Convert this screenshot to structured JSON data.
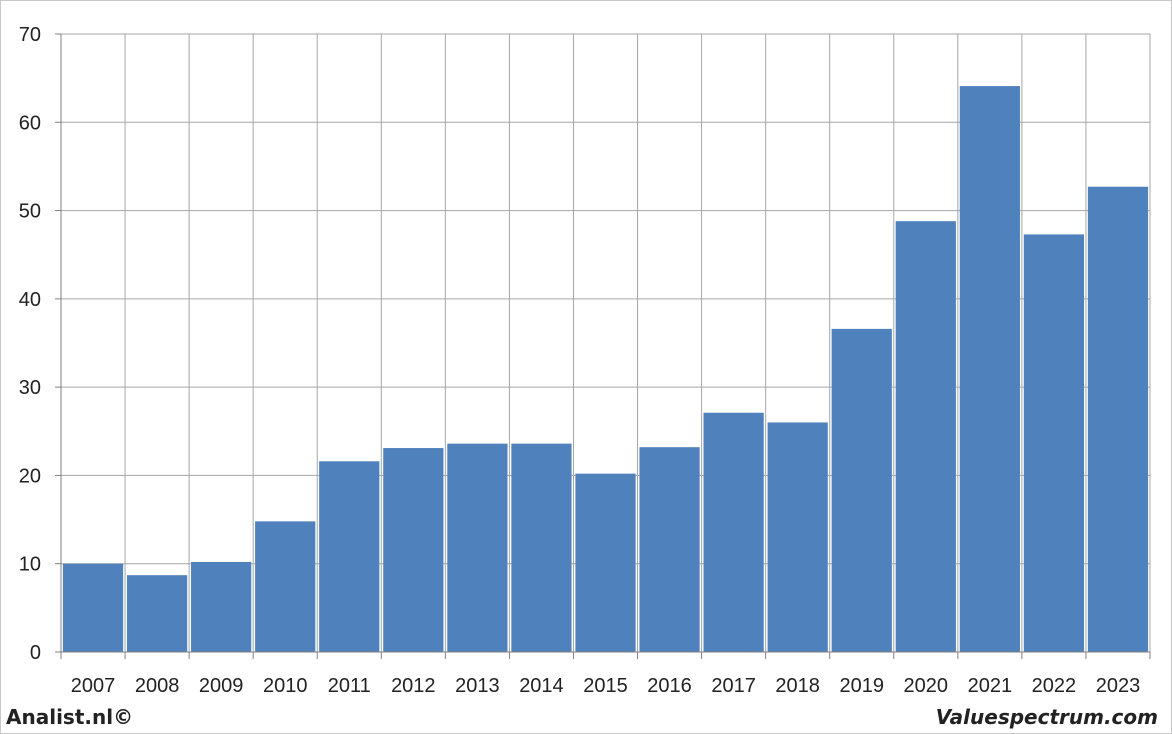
{
  "chart_data": {
    "type": "bar",
    "categories": [
      "2007",
      "2008",
      "2009",
      "2010",
      "2011",
      "2012",
      "2013",
      "2014",
      "2015",
      "2016",
      "2017",
      "2018",
      "2019",
      "2020",
      "2021",
      "2022",
      "2023"
    ],
    "values": [
      10.0,
      8.7,
      10.2,
      14.8,
      21.6,
      23.1,
      23.6,
      23.6,
      20.2,
      23.2,
      27.1,
      26.0,
      36.6,
      48.8,
      64.1,
      47.3,
      52.7
    ],
    "title": "",
    "xlabel": "",
    "ylabel": "",
    "ylim": [
      0,
      70
    ],
    "yticks": [
      0,
      10,
      20,
      30,
      40,
      50,
      60,
      70
    ],
    "grid": true,
    "bar_color": "#4f81bd",
    "grid_color": "#a6a6a6"
  },
  "footer": {
    "left": "Analist.nl©",
    "right": "Valuespectrum.com"
  }
}
